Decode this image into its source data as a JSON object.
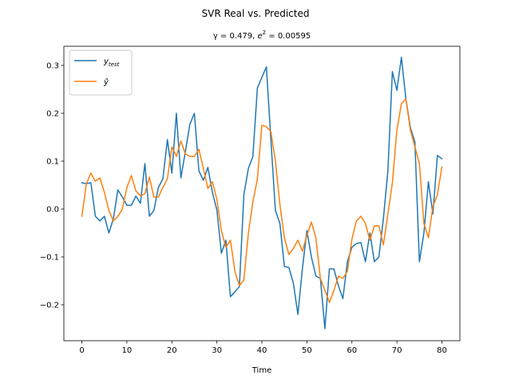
{
  "chart_data": {
    "type": "line",
    "title": "SVR Real vs. Predicted",
    "subtitle_prefix": "γ = 0.479, ",
    "subtitle_e": "e",
    "subtitle_exp": "2",
    "subtitle_suffix": " = 0.00595",
    "xlabel": "Time",
    "ylabel": "",
    "xlim": [
      -4,
      84
    ],
    "ylim": [
      -0.275,
      0.34
    ],
    "xticks": [
      0,
      10,
      20,
      30,
      40,
      50,
      60,
      70,
      80
    ],
    "yticks": [
      -0.2,
      -0.1,
      0.0,
      0.1,
      0.2,
      0.3
    ],
    "ytick_labels": [
      "−0.2",
      "−0.1",
      "0.0",
      "0.1",
      "0.2",
      "0.3"
    ],
    "legend_position": "upper-left",
    "x": [
      0,
      1,
      2,
      3,
      4,
      5,
      6,
      7,
      8,
      9,
      10,
      11,
      12,
      13,
      14,
      15,
      16,
      17,
      18,
      19,
      20,
      21,
      22,
      23,
      24,
      25,
      26,
      27,
      28,
      29,
      30,
      31,
      32,
      33,
      34,
      35,
      36,
      37,
      38,
      39,
      40,
      41,
      42,
      43,
      44,
      45,
      46,
      47,
      48,
      49,
      50,
      51,
      52,
      53,
      54,
      55,
      56,
      57,
      58,
      59,
      60,
      61,
      62,
      63,
      64,
      65,
      66,
      67,
      68,
      69,
      70,
      71,
      72,
      73,
      74,
      75,
      76,
      77,
      78,
      79,
      80
    ],
    "series": [
      {
        "name_main": "y",
        "name_sub": "test",
        "color": "#1f77b4",
        "values": [
          0.055,
          0.053,
          0.055,
          -0.015,
          -0.025,
          -0.015,
          -0.05,
          -0.02,
          0.04,
          0.025,
          0.008,
          0.008,
          0.027,
          0.012,
          0.095,
          -0.015,
          -0.003,
          0.045,
          0.063,
          0.145,
          0.075,
          0.2,
          0.065,
          0.12,
          0.177,
          0.2,
          0.08,
          0.06,
          0.087,
          0.035,
          -0.002,
          -0.092,
          -0.065,
          -0.183,
          -0.173,
          -0.162,
          0.03,
          0.085,
          0.11,
          0.253,
          0.275,
          0.297,
          0.145,
          -0.003,
          -0.03,
          -0.12,
          -0.122,
          -0.155,
          -0.22,
          -0.125,
          -0.045,
          -0.1,
          -0.14,
          -0.145,
          -0.25,
          -0.125,
          -0.125,
          -0.16,
          -0.187,
          -0.11,
          -0.08,
          -0.072,
          -0.07,
          -0.11,
          -0.05,
          -0.11,
          -0.1,
          -0.02,
          0.08,
          0.287,
          0.248,
          0.317,
          0.23,
          0.17,
          0.14,
          -0.11,
          -0.05,
          0.057,
          -0.01,
          0.112,
          0.105
        ]
      },
      {
        "name_main": "ŷ",
        "name_sub": "",
        "color": "#ff7f0e",
        "values": [
          -0.015,
          0.053,
          0.075,
          0.058,
          0.065,
          0.035,
          -0.003,
          -0.025,
          -0.015,
          0.0,
          0.045,
          0.07,
          0.038,
          0.028,
          0.032,
          0.067,
          0.025,
          0.025,
          0.045,
          0.063,
          0.13,
          0.11,
          0.142,
          0.115,
          0.11,
          0.11,
          0.125,
          0.085,
          0.043,
          0.057,
          0.02,
          -0.045,
          -0.08,
          -0.065,
          -0.13,
          -0.16,
          -0.148,
          -0.05,
          0.015,
          0.063,
          0.175,
          0.172,
          0.162,
          0.1,
          0.01,
          -0.06,
          -0.095,
          -0.082,
          -0.065,
          -0.088,
          -0.055,
          -0.027,
          -0.06,
          -0.145,
          -0.17,
          -0.195,
          -0.17,
          -0.14,
          -0.145,
          -0.13,
          -0.063,
          -0.025,
          -0.015,
          -0.03,
          -0.065,
          -0.035,
          -0.035,
          -0.075,
          -0.01,
          0.055,
          0.165,
          0.22,
          0.23,
          0.165,
          0.13,
          0.095,
          -0.03,
          -0.06,
          0.005,
          0.03,
          0.088
        ]
      }
    ]
  }
}
